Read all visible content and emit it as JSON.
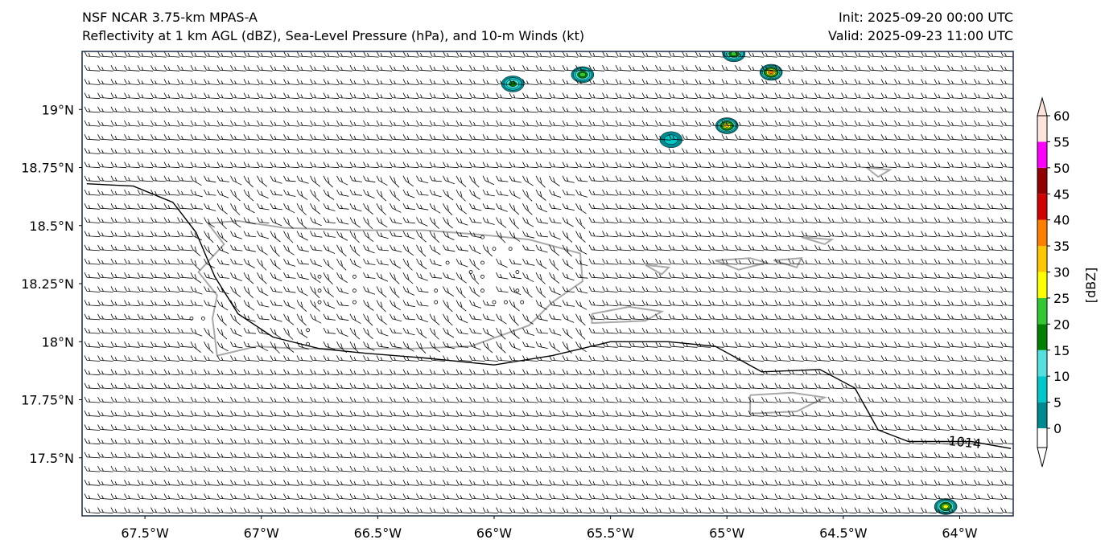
{
  "title": {
    "left_line1": "NSF NCAR 3.75-km MPAS-A",
    "left_line2": "Reflectivity at 1 km AGL (dBZ), Sea-Level Pressure (hPa), and 10-m Winds (kt)",
    "right_line1": "Init: 2025-09-20 00:00 UTC",
    "right_line2": "Valid: 2025-09-23 11:00 UTC"
  },
  "map": {
    "extent": {
      "lon_min": -67.77,
      "lon_max": -63.77,
      "lat_min": 17.25,
      "lat_max": 19.25
    },
    "lon_ticks": [
      {
        "value": -67.5,
        "label": "67.5°W"
      },
      {
        "value": -67.0,
        "label": "67°W"
      },
      {
        "value": -66.5,
        "label": "66.5°W"
      },
      {
        "value": -66.0,
        "label": "66°W"
      },
      {
        "value": -65.5,
        "label": "65.5°W"
      },
      {
        "value": -65.0,
        "label": "65°W"
      },
      {
        "value": -64.5,
        "label": "64.5°W"
      },
      {
        "value": -64.0,
        "label": "64°W"
      }
    ],
    "lat_ticks": [
      {
        "value": 19.0,
        "label": "19°N"
      },
      {
        "value": 18.75,
        "label": "18.75°N"
      },
      {
        "value": 18.5,
        "label": "18.5°N"
      },
      {
        "value": 18.25,
        "label": "18.25°N"
      },
      {
        "value": 18.0,
        "label": "18°N"
      },
      {
        "value": 17.75,
        "label": "17.75°N"
      },
      {
        "value": 17.5,
        "label": "17.5°N"
      }
    ],
    "isobar_label": "1014",
    "isobar": [
      [
        -67.75,
        18.68
      ],
      [
        -67.55,
        18.67
      ],
      [
        -67.38,
        18.6
      ],
      [
        -67.28,
        18.47
      ],
      [
        -67.2,
        18.28
      ],
      [
        -67.1,
        18.12
      ],
      [
        -66.95,
        18.02
      ],
      [
        -66.75,
        17.97
      ],
      [
        -66.55,
        17.95
      ],
      [
        -66.3,
        17.93
      ],
      [
        -66.0,
        17.9
      ],
      [
        -65.75,
        17.94
      ],
      [
        -65.5,
        18.0
      ],
      [
        -65.25,
        18.0
      ],
      [
        -65.05,
        17.98
      ],
      [
        -64.85,
        17.87
      ],
      [
        -64.6,
        17.88
      ],
      [
        -64.45,
        17.8
      ],
      [
        -64.35,
        17.62
      ],
      [
        -64.22,
        17.57
      ],
      [
        -63.95,
        17.57
      ],
      [
        -63.78,
        17.54
      ]
    ],
    "coast_puerto_rico": [
      [
        -67.23,
        18.51
      ],
      [
        -67.1,
        18.52
      ],
      [
        -66.9,
        18.49
      ],
      [
        -66.6,
        18.48
      ],
      [
        -66.3,
        18.48
      ],
      [
        -66.05,
        18.46
      ],
      [
        -65.85,
        18.44
      ],
      [
        -65.63,
        18.38
      ],
      [
        -65.62,
        18.26
      ],
      [
        -65.75,
        18.17
      ],
      [
        -65.85,
        18.07
      ],
      [
        -66.1,
        17.98
      ],
      [
        -66.35,
        17.97
      ],
      [
        -66.6,
        17.97
      ],
      [
        -66.85,
        17.97
      ],
      [
        -67.02,
        17.98
      ],
      [
        -67.19,
        17.94
      ],
      [
        -67.21,
        18.1
      ],
      [
        -67.19,
        18.2
      ],
      [
        -67.27,
        18.3
      ],
      [
        -67.16,
        18.42
      ],
      [
        -67.23,
        18.51
      ]
    ],
    "coast_vieques": [
      [
        -65.58,
        18.12
      ],
      [
        -65.42,
        18.15
      ],
      [
        -65.28,
        18.13
      ],
      [
        -65.35,
        18.09
      ],
      [
        -65.58,
        18.08
      ],
      [
        -65.58,
        18.12
      ]
    ],
    "coast_culebra": [
      [
        -65.35,
        18.33
      ],
      [
        -65.25,
        18.32
      ],
      [
        -65.28,
        18.29
      ],
      [
        -65.35,
        18.33
      ]
    ],
    "coast_st_thomas": [
      [
        -65.05,
        18.35
      ],
      [
        -64.9,
        18.36
      ],
      [
        -64.83,
        18.34
      ],
      [
        -64.95,
        18.31
      ],
      [
        -65.05,
        18.35
      ]
    ],
    "coast_st_john": [
      [
        -64.8,
        18.35
      ],
      [
        -64.68,
        18.36
      ],
      [
        -64.7,
        18.32
      ],
      [
        -64.8,
        18.35
      ]
    ],
    "coast_tortola": [
      [
        -64.68,
        18.45
      ],
      [
        -64.55,
        18.44
      ],
      [
        -64.58,
        18.42
      ],
      [
        -64.68,
        18.45
      ]
    ],
    "coast_anegada": [
      [
        -64.4,
        18.75
      ],
      [
        -64.3,
        18.74
      ],
      [
        -64.35,
        18.71
      ],
      [
        -64.4,
        18.75
      ]
    ],
    "coast_st_croix": [
      [
        -64.9,
        17.77
      ],
      [
        -64.72,
        17.78
      ],
      [
        -64.58,
        17.76
      ],
      [
        -64.7,
        17.7
      ],
      [
        -64.9,
        17.69
      ],
      [
        -64.9,
        17.77
      ]
    ],
    "reflectivity_cells": [
      {
        "lon": -65.92,
        "lat": 19.11,
        "dbz": 20
      },
      {
        "lon": -65.62,
        "lat": 19.15,
        "dbz": 25
      },
      {
        "lon": -64.81,
        "lat": 19.16,
        "dbz": 40
      },
      {
        "lon": -64.97,
        "lat": 19.24,
        "dbz": 25
      },
      {
        "lon": -65.0,
        "lat": 18.93,
        "dbz": 35
      },
      {
        "lon": -65.24,
        "lat": 18.87,
        "dbz": 12
      },
      {
        "lon": -64.06,
        "lat": 17.29,
        "dbz": 30
      }
    ],
    "calm_points": [
      [
        -67.3,
        18.1
      ],
      [
        -67.25,
        18.1
      ],
      [
        -66.75,
        18.28
      ],
      [
        -66.75,
        18.22
      ],
      [
        -66.75,
        18.17
      ],
      [
        -66.6,
        18.28
      ],
      [
        -66.6,
        18.22
      ],
      [
        -66.6,
        18.17
      ],
      [
        -66.25,
        18.22
      ],
      [
        -66.25,
        18.17
      ],
      [
        -66.05,
        18.45
      ],
      [
        -66.0,
        18.4
      ],
      [
        -66.05,
        18.34
      ],
      [
        -66.05,
        18.28
      ],
      [
        -66.05,
        18.22
      ],
      [
        -66.0,
        18.17
      ],
      [
        -65.93,
        18.4
      ],
      [
        -65.9,
        18.3
      ],
      [
        -65.9,
        18.22
      ],
      [
        -65.95,
        18.17
      ],
      [
        -65.88,
        18.17
      ],
      [
        -66.1,
        18.3
      ],
      [
        -66.8,
        18.05
      ],
      [
        -66.8,
        17.99
      ],
      [
        -66.2,
        18.34
      ]
    ]
  },
  "colorbar": {
    "label": "[dBZ]",
    "levels": [
      "0",
      "5",
      "10",
      "15",
      "20",
      "25",
      "30",
      "35",
      "40",
      "45",
      "50",
      "55",
      "60"
    ],
    "colors": [
      "#ffffff",
      "#00898f",
      "#00c8c8",
      "#55e0e0",
      "#008000",
      "#33c733",
      "#ffff00",
      "#ffc800",
      "#ff8000",
      "#d00000",
      "#900000",
      "#ff00ff",
      "#ffe4dc"
    ]
  }
}
